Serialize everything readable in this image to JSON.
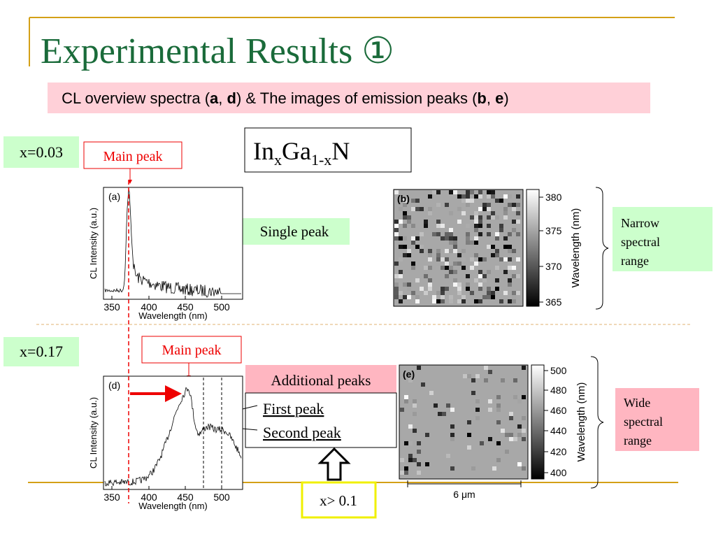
{
  "header": {
    "title": "Experimental Results ①",
    "subtitle": [
      "CL overview spectra (",
      "a",
      ", ",
      "d",
      ") & The images of emission peaks (",
      "b",
      ", ",
      "e",
      ")"
    ]
  },
  "formula": {
    "parts": [
      "In",
      "x",
      "Ga",
      "1-x",
      "N"
    ]
  },
  "row1": {
    "composition": "x=0.03",
    "main_peak": "Main peak",
    "note": "Single peak",
    "range": [
      "Narrow",
      "spectral",
      "range"
    ]
  },
  "row2": {
    "composition": "x=0.17",
    "main_peak": "Main peak",
    "additional": "Additional peaks",
    "first": "First peak",
    "second": "Second peak",
    "condition": "x> 0.1",
    "range": [
      "Wide",
      "spectral",
      "range"
    ]
  },
  "plot_a": {
    "panel": "(a)",
    "ylabel": "CL Intensity (a.u.)",
    "xlabel": "Wavelength (nm)",
    "xticks": [
      "350",
      "400",
      "450",
      "500"
    ]
  },
  "plot_d": {
    "panel": "(d)",
    "ylabel": "CL Intensity (a.u.)",
    "xlabel": "Wavelength (nm)",
    "xticks": [
      "350",
      "400",
      "450",
      "500"
    ]
  },
  "image_b": {
    "panel": "(b)",
    "label": "Wavelength (nm)",
    "ticks": [
      "380",
      "375",
      "370",
      "365"
    ]
  },
  "image_e": {
    "panel": "(e)",
    "label": "Wavelength (nm)",
    "ticks": [
      "500",
      "480",
      "460",
      "440",
      "420",
      "400"
    ],
    "scale": "6 μm"
  }
}
